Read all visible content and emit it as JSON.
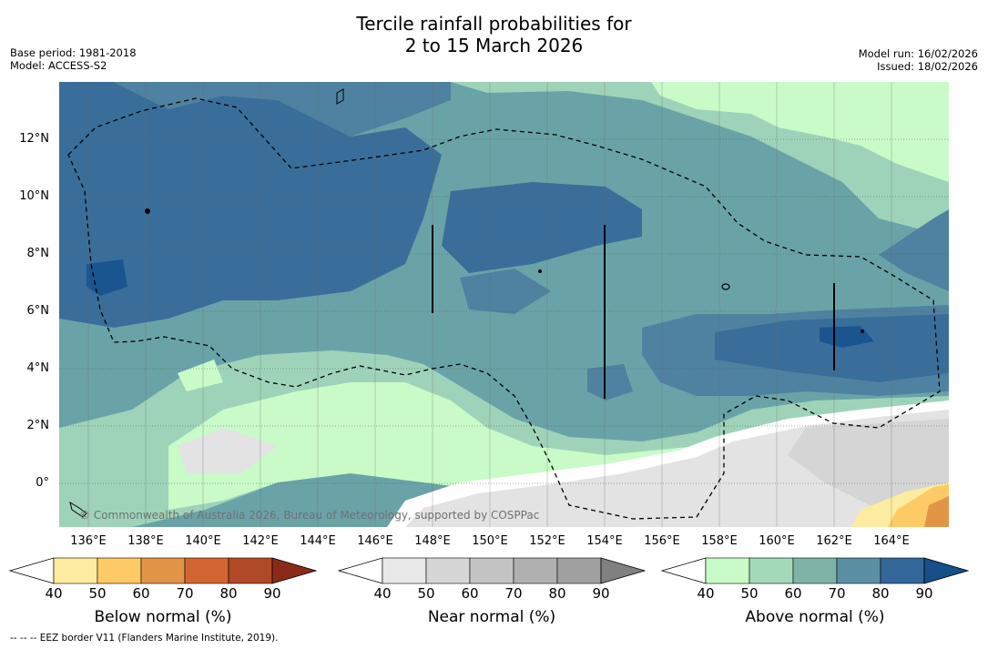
{
  "header": {
    "title_line1": "Tercile rainfall probabilities for",
    "title_line2": "2 to 15 March 2026",
    "base_period": "Base period: 1981-2018",
    "model": "Model: ACCESS-S2",
    "model_run": "Model run: 16/02/2026",
    "issued": "Issued: 18/02/2026"
  },
  "map": {
    "lat_labels": [
      "12°N",
      "10°N",
      "8°N",
      "6°N",
      "4°N",
      "2°N",
      "0°"
    ],
    "lon_labels": [
      "136°E",
      "138°E",
      "140°E",
      "142°E",
      "144°E",
      "146°E",
      "148°E",
      "150°E",
      "152°E",
      "154°E",
      "156°E",
      "158°E",
      "160°E",
      "162°E",
      "164°E"
    ],
    "copyright": "© Commonwealth of Australia 2026, Bureau of Meteorology, supported by COSPPac"
  },
  "colorbars": [
    {
      "title": "Below normal (%)",
      "ticks": [
        "40",
        "50",
        "60",
        "70",
        "80",
        "90"
      ],
      "colors": [
        "#ffffff",
        "#fdeca0",
        "#fdca65",
        "#e29546",
        "#d16633",
        "#b04a26",
        "#8c2a1a"
      ]
    },
    {
      "title": "Near normal (%)",
      "ticks": [
        "40",
        "50",
        "60",
        "70",
        "80",
        "90"
      ],
      "colors": [
        "#ffffff",
        "#e8e8e8",
        "#d6d6d6",
        "#c4c4c4",
        "#b0b0b0",
        "#a0a0a0",
        "#808080"
      ]
    },
    {
      "title": "Above normal (%)",
      "ticks": [
        "40",
        "50",
        "60",
        "70",
        "80",
        "90"
      ],
      "colors": [
        "#ffffff",
        "#c9fbc8",
        "#a3d9b9",
        "#80b3a8",
        "#5b90a4",
        "#336699",
        "#164f8a"
      ]
    }
  ],
  "footer": {
    "eez_note": "--  --  -- EEZ border V11 (Flanders Marine Institute, 2019)."
  }
}
